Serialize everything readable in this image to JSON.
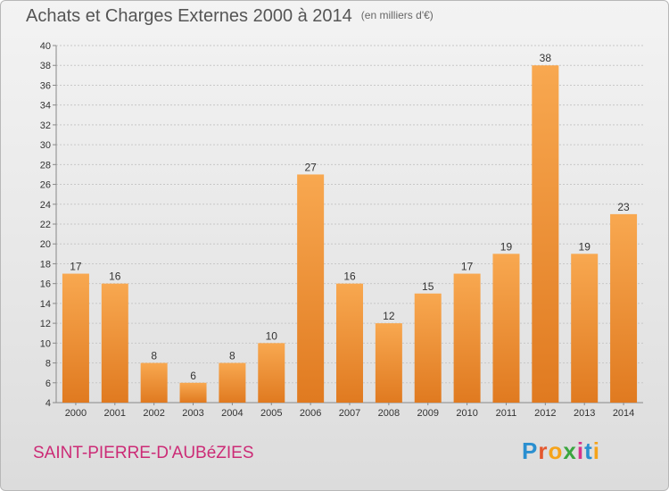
{
  "header": {
    "title": "Achats et Charges Externes 2000 à 2014",
    "subtitle": "(en milliers d'€)"
  },
  "footer": {
    "commune": "SAINT-PIERRE-D'AUBéZIES",
    "brand_letters": [
      "P",
      "r",
      "o",
      "x",
      "i",
      "t",
      "i"
    ],
    "brand_colors": [
      "#2a8fd0",
      "#e4572e",
      "#f5a31a",
      "#3aa63f",
      "#d6338a",
      "#2a8fd0",
      "#f5a31a"
    ]
  },
  "colors": {
    "bar_light": "#f8a850",
    "bar_dark": "#e07a20",
    "grid": "#c8c8c8",
    "axis": "#888888",
    "text": "#333333"
  },
  "chart_data": {
    "type": "bar",
    "title": "Achats et Charges Externes 2000 à 2014",
    "subtitle": "(en milliers d'€)",
    "xlabel": "",
    "ylabel": "",
    "ylim": [
      4,
      40
    ],
    "ytick_step": 2,
    "grid": true,
    "categories": [
      "2000",
      "2001",
      "2002",
      "2003",
      "2004",
      "2005",
      "2006",
      "2007",
      "2008",
      "2009",
      "2010",
      "2011",
      "2012",
      "2013",
      "2014"
    ],
    "values": [
      17,
      16,
      8,
      6,
      8,
      10,
      27,
      16,
      12,
      15,
      17,
      19,
      38,
      19,
      23
    ]
  }
}
